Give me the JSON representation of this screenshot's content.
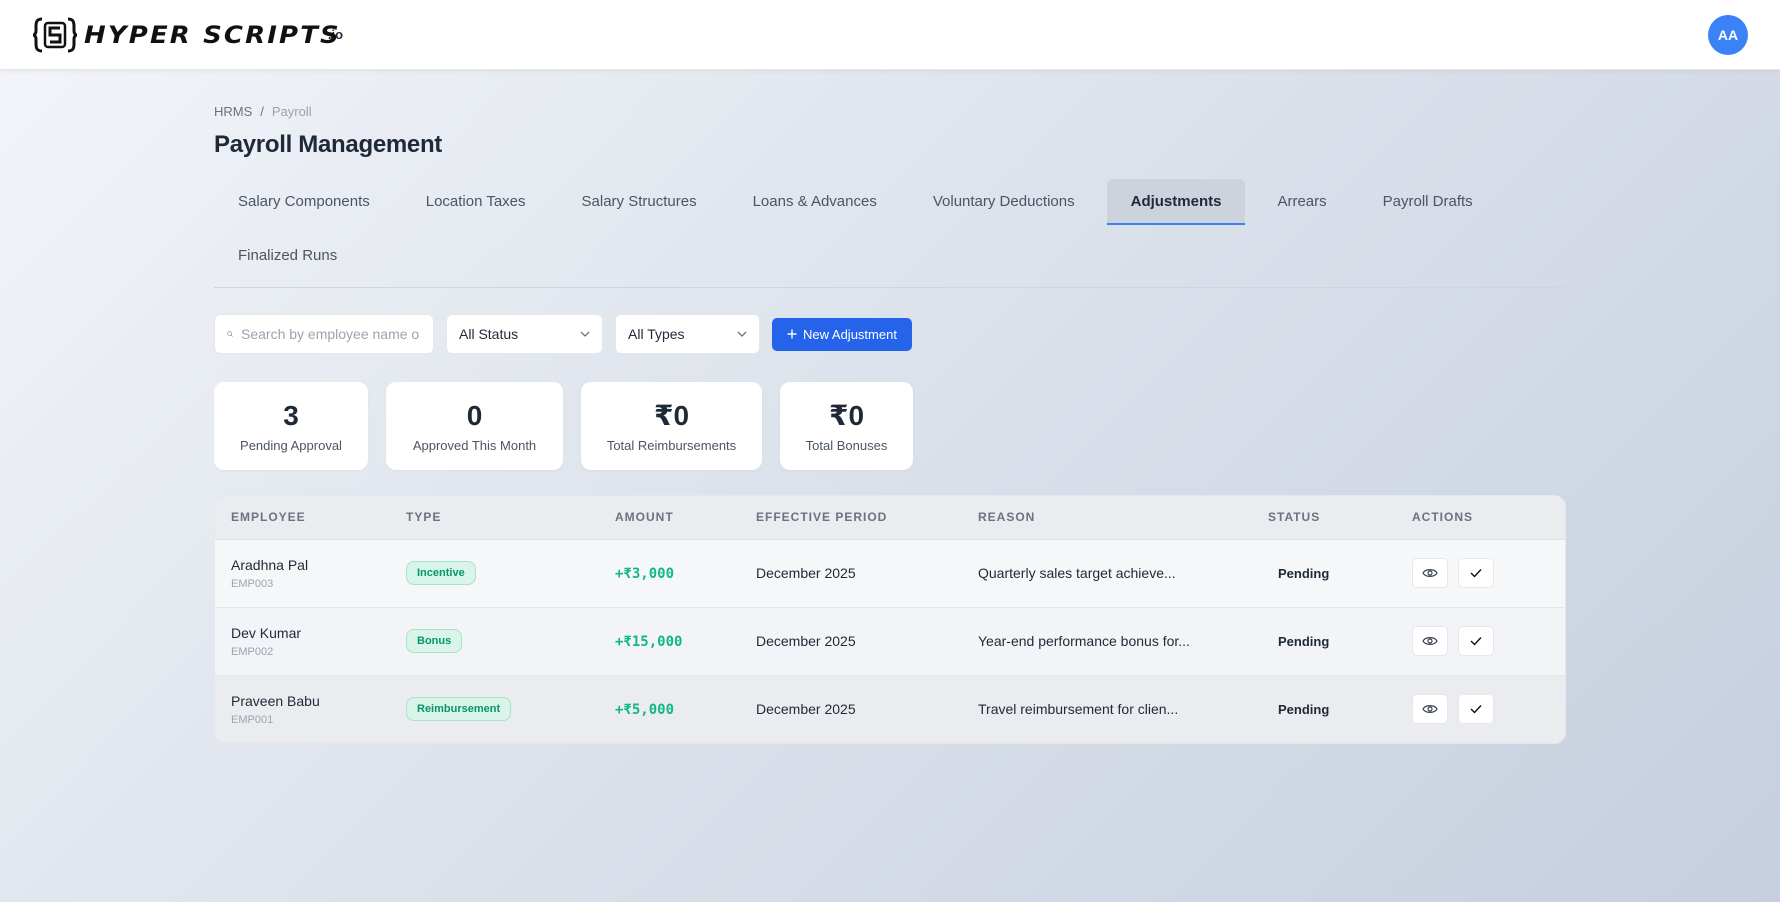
{
  "header": {
    "logo_text": "HYPER SCRIPTS",
    "logo_suffix": ".io",
    "avatar_initials": "AA"
  },
  "breadcrumb": {
    "root": "HRMS",
    "separator": "/",
    "current": "Payroll"
  },
  "page": {
    "title": "Payroll Management"
  },
  "tabs": [
    {
      "label": "Salary Components"
    },
    {
      "label": "Location Taxes"
    },
    {
      "label": "Salary Structures"
    },
    {
      "label": "Loans & Advances"
    },
    {
      "label": "Voluntary Deductions"
    },
    {
      "label": "Adjustments",
      "active": true
    },
    {
      "label": "Arrears"
    },
    {
      "label": "Payroll Drafts"
    },
    {
      "label": "Finalized Runs"
    }
  ],
  "toolbar": {
    "search_placeholder": "Search by employee name o",
    "status_filter": "All Status",
    "type_filter": "All Types",
    "new_button": "New Adjustment"
  },
  "stats": [
    {
      "value": "3",
      "label": "Pending Approval"
    },
    {
      "value": "0",
      "label": "Approved This Month"
    },
    {
      "value": "₹0",
      "label": "Total Reimbursements"
    },
    {
      "value": "₹0",
      "label": "Total Bonuses"
    }
  ],
  "table": {
    "columns": [
      "EMPLOYEE",
      "TYPE",
      "AMOUNT",
      "EFFECTIVE PERIOD",
      "REASON",
      "STATUS",
      "ACTIONS"
    ],
    "rows": [
      {
        "name": "Aradhna Pal",
        "id": "EMP003",
        "type": "Incentive",
        "amount": "+₹3,000",
        "period": "December 2025",
        "reason": "Quarterly sales target achieve...",
        "status": "Pending"
      },
      {
        "name": "Dev Kumar",
        "id": "EMP002",
        "type": "Bonus",
        "amount": "+₹15,000",
        "period": "December 2025",
        "reason": "Year-end performance bonus for...",
        "status": "Pending"
      },
      {
        "name": "Praveen Babu",
        "id": "EMP001",
        "type": "Reimbursement",
        "amount": "+₹5,000",
        "period": "December 2025",
        "reason": "Travel reimbursement for clien...",
        "status": "Pending"
      }
    ]
  },
  "colors": {
    "accent": "#2563eb",
    "amount_green": "#10b981",
    "badge_bg": "#d9f4e8",
    "badge_text": "#059669"
  },
  "icons": [
    "logo-icon",
    "search-icon",
    "chevron-down-icon",
    "plus-icon",
    "eye-icon",
    "check-icon"
  ]
}
